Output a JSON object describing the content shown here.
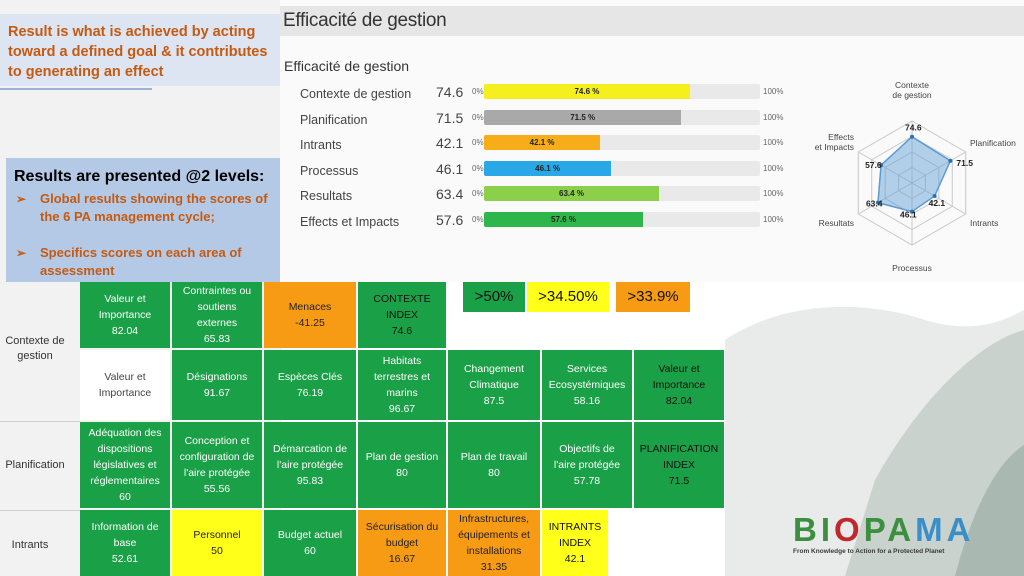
{
  "callouts": {
    "top_text": "Result is what is achieved by acting toward  a defined goal & it contributes to generating an effect",
    "results_title": "Results are presented @2 levels:",
    "bullets": [
      "Global results showing the scores of the 6 PA management cycle;",
      "Specifics scores on each area of assessment"
    ],
    "bullet_arrow": "➢"
  },
  "panel": {
    "header_title": "Efficacité de gestion",
    "subtitle": "Efficacité de gestion",
    "min_label": "0%",
    "max_label": "100%",
    "bars": [
      {
        "label": "Contexte de gestion",
        "value": "74.6",
        "fraction": 0.746,
        "pct": "74.6 %",
        "color": "#f5ef1e"
      },
      {
        "label": "Planification",
        "value": "71.5",
        "fraction": 0.715,
        "pct": "71.5 %",
        "color": "#a9a9a9"
      },
      {
        "label": "Intrants",
        "value": "42.1",
        "fraction": 0.421,
        "pct": "42.1 %",
        "color": "#f7ad1a"
      },
      {
        "label": "Processus",
        "value": "46.1",
        "fraction": 0.461,
        "pct": "46.1 %",
        "color": "#2aa7e6"
      },
      {
        "label": "Resultats",
        "value": "63.4",
        "fraction": 0.634,
        "pct": "63.4 %",
        "color": "#8ccf4a"
      },
      {
        "label": "Effects et Impacts",
        "value": "57.6",
        "fraction": 0.576,
        "pct": "57.6 %",
        "color": "#2fb64a"
      }
    ]
  },
  "chart_data": {
    "type": "radar",
    "title": "",
    "axes": [
      "Contexte de gestion",
      "Planification",
      "Intrants",
      "Processus",
      "Resultats",
      "Effects et Impacts"
    ],
    "axis_labels": [
      "Contexte\nde gestion",
      "Planification",
      "Intrants",
      "Processus",
      "Resultats",
      "Effects\net Impacts"
    ],
    "values": [
      74.6,
      71.5,
      42.1,
      46.1,
      63.4,
      57.6
    ],
    "value_labels": [
      "74.6",
      "71.5",
      "42.1",
      "46.1",
      "63.4",
      "57.6"
    ],
    "range": [
      0,
      100
    ],
    "series_color": "#5b9bd5"
  },
  "legend": [
    {
      "label": ">50%",
      "color": "#1aa046"
    },
    {
      "label": ">34.50%",
      "color": "#ffff1a"
    },
    {
      "label": ">33.9%",
      "color": "#f79a14"
    }
  ],
  "table": {
    "row_headers": [
      "Contexte de\ngestion",
      "Planification",
      "Intrants"
    ],
    "cells": {
      "valeur_importance": "Valeur et\nImportance\n82.04",
      "contraintes": "Contraintes ou\nsoutiens\nexternes\n65.83",
      "menaces": "Menaces\n-41.25",
      "contexte_index": "CONTEXTE\nINDEX\n74.6",
      "valeur_label": "Valeur et\nImportance",
      "designations": "Désignations\n91.67",
      "especes": "Espèces Clés\n76.19",
      "habitats": "Habitats\nterrestres et\nmarins\n96.67",
      "changement": "Changement\nClimatique\n87.5",
      "services": "Services\nEcosystémiques\n58.16",
      "valeur_importance_2": "Valeur et\nImportance\n82.04",
      "adequation": "Adéquation des\ndispositions\nlégislatives et\nréglementaires\n60",
      "conception": "Conception et\nconfiguration de\nl'aire protégée\n55.56",
      "demarcation": "Démarcation de\nl'aire protégée\n95.83",
      "plan_gestion": "Plan de gestion\n80",
      "plan_travail": "Plan de travail\n80",
      "objectifs": "Objectifs de\nl'aire protégée\n57.78",
      "planif_index": "PLANIFICATION\nINDEX\n71.5",
      "information": "Information de\nbase\n52.61",
      "personnel": "Personnel\n50",
      "budget": "Budget actuel\n60",
      "securisation": "Sécurisation du\nbudget\n16.67",
      "infrastructures": "Infrastructures,\néquipements et\ninstallations\n31.35",
      "intrants_index": "INTRANTS\nINDEX\n42.1"
    }
  },
  "logo": {
    "parts": [
      "B",
      "I",
      "O",
      "P",
      "A",
      "M",
      "A"
    ],
    "colors": [
      "#3b8f3e",
      "#3b8f3e",
      "#c0282d",
      "#3b8f3e",
      "#3b8f3e",
      "#3a8fc9",
      "#3a8fc9"
    ],
    "tagline": "From Knowledge to Action for a Protected Planet"
  }
}
